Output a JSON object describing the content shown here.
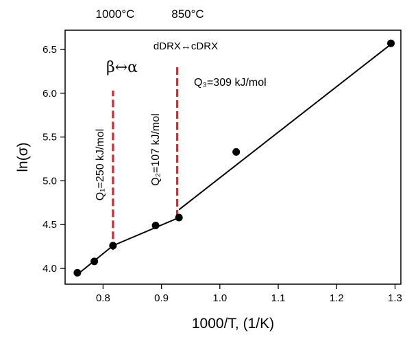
{
  "chart_data": {
    "type": "scatter",
    "xlabel": "1000/T, (1/K)",
    "ylabel": "ln(σ)",
    "xlim": [
      0.735,
      1.31
    ],
    "ylim": [
      3.82,
      6.72
    ],
    "xticks": [
      "0.8",
      "0.9",
      "1.0",
      "1.1",
      "1.2",
      "1.3"
    ],
    "xtick_values": [
      0.8,
      0.9,
      1.0,
      1.1,
      1.2,
      1.3
    ],
    "yticks": [
      "4.0",
      "4.5",
      "5.0",
      "5.5",
      "6.0",
      "6.5"
    ],
    "ytick_values": [
      4.0,
      4.5,
      5.0,
      5.5,
      6.0,
      6.5
    ],
    "grid": false,
    "points": [
      {
        "x": 0.756,
        "y": 3.95
      },
      {
        "x": 0.785,
        "y": 4.08
      },
      {
        "x": 0.817,
        "y": 4.26
      },
      {
        "x": 0.89,
        "y": 4.49
      },
      {
        "x": 0.93,
        "y": 4.58
      },
      {
        "x": 1.028,
        "y": 5.33
      },
      {
        "x": 1.293,
        "y": 6.57
      }
    ],
    "fit_lines": [
      {
        "x": [
          0.756,
          0.817
        ],
        "y": [
          3.93,
          4.26
        ]
      },
      {
        "x": [
          0.817,
          0.93
        ],
        "y": [
          4.26,
          4.58
        ]
      },
      {
        "x": [
          0.93,
          1.293
        ],
        "y": [
          4.67,
          6.56
        ]
      }
    ],
    "transition_lines": [
      {
        "x": 0.817,
        "y": [
          4.21,
          6.03
        ],
        "color": "#e8212b"
      },
      {
        "x": 0.927,
        "y": [
          4.58,
          6.32
        ],
        "color": "#e8212b"
      }
    ],
    "annotations": {
      "temp_1000": "1000°C",
      "temp_850": "850°C",
      "beta_alpha": "β↔α",
      "dynamic": "dDRX↔cDRX",
      "q1": "Q₁=250 kJ/mol",
      "q2": "Q₂=107 kJ/mol",
      "q3": "Q₃=309 kJ/mol"
    },
    "colors": {
      "markers": "#000000",
      "fit": "#000000",
      "transition": "#e8212b"
    }
  }
}
